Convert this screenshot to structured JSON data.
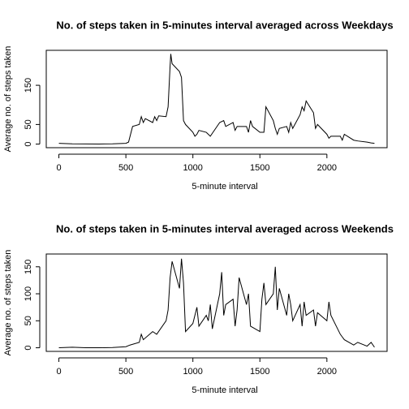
{
  "chart_data": [
    {
      "type": "line",
      "title": "No. of steps taken in 5-minutes interval averaged across Weekdays",
      "x_label": "5-minute interval",
      "y_label": "Average no. of steps taken",
      "x": [
        0,
        100,
        200,
        300,
        400,
        500,
        520,
        550,
        600,
        615,
        630,
        645,
        700,
        715,
        730,
        745,
        800,
        815,
        830,
        835,
        845,
        900,
        915,
        930,
        945,
        1000,
        1015,
        1030,
        1045,
        1100,
        1130,
        1200,
        1230,
        1245,
        1300,
        1315,
        1330,
        1400,
        1415,
        1430,
        1445,
        1500,
        1530,
        1545,
        1600,
        1615,
        1630,
        1645,
        1700,
        1715,
        1730,
        1745,
        1800,
        1815,
        1830,
        1845,
        1900,
        1915,
        1930,
        2000,
        2015,
        2030,
        2100,
        2115,
        2130,
        2200,
        2230,
        2300,
        2330,
        2355
      ],
      "series": [
        {
          "name": "Weekdays",
          "color": "#000000",
          "values": [
            2,
            0.5,
            0.3,
            0.2,
            0.5,
            2,
            5,
            45,
            50,
            70,
            55,
            65,
            55,
            70,
            60,
            72,
            70,
            95,
            200,
            230,
            205,
            185,
            170,
            60,
            50,
            30,
            20,
            25,
            35,
            30,
            20,
            55,
            60,
            45,
            55,
            35,
            45,
            45,
            30,
            60,
            45,
            30,
            30,
            95,
            60,
            40,
            25,
            40,
            45,
            30,
            55,
            40,
            75,
            95,
            85,
            110,
            80,
            40,
            50,
            25,
            15,
            20,
            20,
            10,
            25,
            10,
            8,
            5,
            3,
            2
          ]
        }
      ],
      "xlim": [
        -94.2,
        2449.2
      ],
      "ylim": [
        -9.2,
        239.2
      ],
      "xticks": [
        0,
        500,
        1000,
        1500,
        2000
      ],
      "yticks": [
        0,
        50,
        150
      ]
    },
    {
      "type": "line",
      "title": "No. of steps taken in 5-minutes interval averaged across Weekends",
      "x_label": "5-minute interval",
      "y_label": "Average no. of steps taken",
      "x": [
        0,
        100,
        200,
        300,
        400,
        500,
        530,
        600,
        615,
        630,
        700,
        730,
        800,
        815,
        830,
        845,
        900,
        915,
        930,
        945,
        1000,
        1015,
        1030,
        1045,
        1100,
        1115,
        1130,
        1145,
        1200,
        1215,
        1230,
        1245,
        1300,
        1315,
        1330,
        1345,
        1400,
        1415,
        1430,
        1500,
        1515,
        1530,
        1545,
        1600,
        1615,
        1630,
        1645,
        1700,
        1715,
        1730,
        1745,
        1800,
        1815,
        1830,
        1845,
        1900,
        1915,
        1930,
        2000,
        2015,
        2030,
        2100,
        2115,
        2130,
        2200,
        2230,
        2300,
        2330,
        2355
      ],
      "series": [
        {
          "name": "Weekends",
          "color": "#000000",
          "values": [
            0,
            1,
            0,
            0,
            0.5,
            2,
            5,
            10,
            25,
            15,
            30,
            25,
            50,
            70,
            130,
            160,
            110,
            165,
            120,
            30,
            45,
            60,
            75,
            40,
            60,
            50,
            80,
            35,
            100,
            140,
            60,
            80,
            90,
            40,
            70,
            130,
            80,
            100,
            40,
            30,
            90,
            120,
            80,
            100,
            150,
            70,
            110,
            60,
            100,
            80,
            50,
            80,
            40,
            85,
            60,
            70,
            40,
            65,
            50,
            85,
            60,
            25,
            20,
            15,
            5,
            10,
            3,
            10,
            1
          ]
        }
      ],
      "xlim": [
        -94.2,
        2449.2
      ],
      "ylim": [
        -6.7,
        173.7
      ],
      "xticks": [
        0,
        500,
        1000,
        1500,
        2000
      ],
      "yticks": [
        0,
        50,
        100,
        150
      ]
    }
  ]
}
